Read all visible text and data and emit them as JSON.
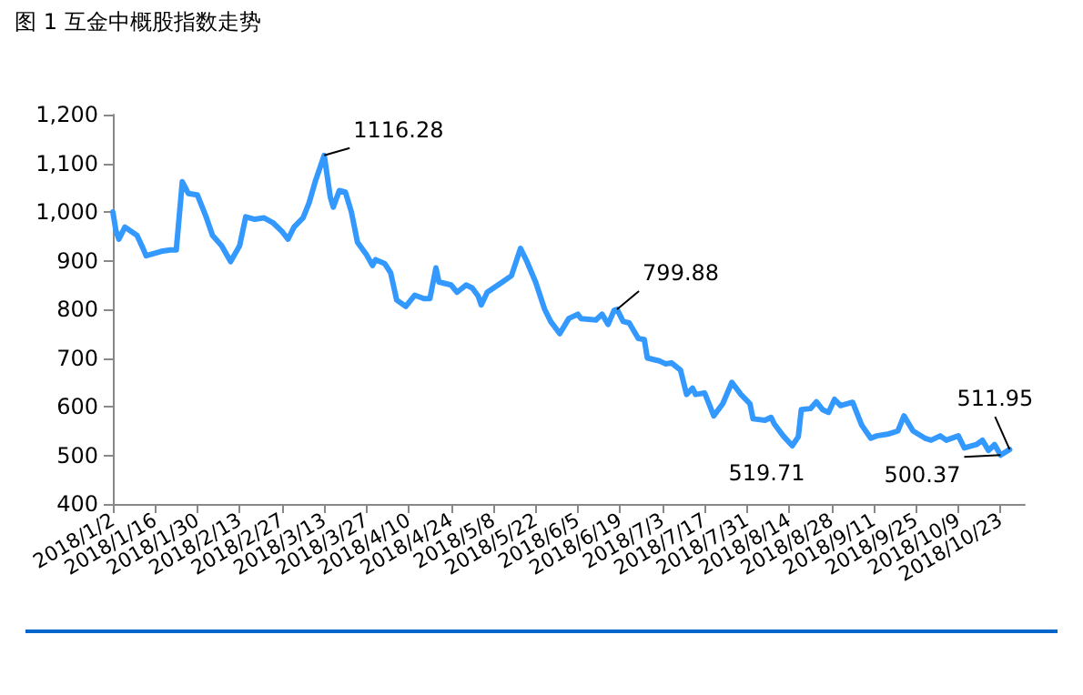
{
  "chart_data": {
    "type": "line",
    "title": "图 1  互金中概股指数走势",
    "x": [
      "2018-01-02",
      "2018-01-03",
      "2018-01-04",
      "2018-01-06",
      "2018-01-09",
      "2018-01-10",
      "2018-01-12",
      "2018-01-13",
      "2018-01-18",
      "2018-01-21",
      "2018-01-23",
      "2018-01-25",
      "2018-01-27",
      "2018-01-30",
      "2018-02-02",
      "2018-02-04",
      "2018-02-07",
      "2018-02-10",
      "2018-02-13",
      "2018-02-15",
      "2018-02-18",
      "2018-02-21",
      "2018-02-24",
      "2018-02-27",
      "2018-03-01",
      "2018-03-03",
      "2018-03-06",
      "2018-03-08",
      "2018-03-10",
      "2018-03-13",
      "2018-03-15",
      "2018-03-16",
      "2018-03-18",
      "2018-03-20",
      "2018-03-22",
      "2018-03-24",
      "2018-03-27",
      "2018-03-29",
      "2018-03-30",
      "2018-04-02",
      "2018-04-04",
      "2018-04-06",
      "2018-04-09",
      "2018-04-12",
      "2018-04-15",
      "2018-04-17",
      "2018-04-19",
      "2018-04-20",
      "2018-04-24",
      "2018-04-26",
      "2018-04-29",
      "2018-05-01",
      "2018-05-03",
      "2018-05-04",
      "2018-05-06",
      "2018-05-11",
      "2018-05-14",
      "2018-05-17",
      "2018-05-19",
      "2018-05-22",
      "2018-05-25",
      "2018-05-27",
      "2018-05-30",
      "2018-06-02",
      "2018-06-05",
      "2018-06-06",
      "2018-06-11",
      "2018-06-13",
      "2018-06-15",
      "2018-06-17",
      "2018-06-18",
      "2018-06-20",
      "2018-06-22",
      "2018-06-25",
      "2018-06-27",
      "2018-06-28",
      "2018-07-02",
      "2018-07-04",
      "2018-07-06",
      "2018-07-09",
      "2018-07-11",
      "2018-07-13",
      "2018-07-14",
      "2018-07-17",
      "2018-07-20",
      "2018-07-23",
      "2018-07-26",
      "2018-07-29",
      "2018-08-01",
      "2018-08-02",
      "2018-08-06",
      "2018-08-08",
      "2018-08-09",
      "2018-08-12",
      "2018-08-15",
      "2018-08-17",
      "2018-08-18",
      "2018-08-21",
      "2018-08-23",
      "2018-08-25",
      "2018-08-27",
      "2018-08-29",
      "2018-08-31",
      "2018-09-04",
      "2018-09-07",
      "2018-09-10",
      "2018-09-12",
      "2018-09-16",
      "2018-09-19",
      "2018-09-21",
      "2018-09-24",
      "2018-09-28",
      "2018-09-30",
      "2018-10-03",
      "2018-10-05",
      "2018-10-09",
      "2018-10-11",
      "2018-10-15",
      "2018-10-17",
      "2018-10-19",
      "2018-10-21",
      "2018-10-23",
      "2018-10-26"
    ],
    "series": [
      {
        "color": "#3399ff",
        "values": [
          1000,
          962,
          944,
          969,
          956,
          952,
          925,
          910,
          919,
          922,
          922,
          1062,
          1038,
          1035,
          988,
          952,
          931,
          898,
          931,
          990,
          985,
          988,
          978,
          960,
          944,
          969,
          988,
          1019,
          1062,
          1116.28,
          1031,
          1010,
          1044,
          1041,
          1000,
          938,
          912,
          890,
          902,
          894,
          875,
          819,
          806,
          829,
          822,
          822,
          885,
          856,
          850,
          835,
          850,
          844,
          827,
          809,
          835,
          856,
          869,
          925,
          900,
          856,
          800,
          775,
          750,
          781,
          790,
          781,
          778,
          790,
          769,
          798,
          799.88,
          775,
          772,
          740,
          738,
          700,
          694,
          688,
          690,
          675,
          625,
          638,
          625,
          628,
          581,
          606,
          650,
          625,
          606,
          575,
          572,
          578,
          565,
          540,
          519.71,
          538,
          594,
          596,
          610,
          594,
          588,
          615,
          602,
          609,
          562,
          535,
          540,
          544,
          550,
          581,
          550,
          535,
          531,
          540,
          531,
          540,
          515,
          522,
          531,
          510,
          522,
          500.37,
          511.95
        ]
      }
    ],
    "xlim": [
      "2018-01-02",
      "2018-10-31"
    ],
    "xticks": [
      {
        "value": "2018-01-02",
        "label": "2018/1/2"
      },
      {
        "value": "2018-01-16",
        "label": "2018/1/16"
      },
      {
        "value": "2018-01-30",
        "label": "2018/1/30"
      },
      {
        "value": "2018-02-13",
        "label": "2018/2/13"
      },
      {
        "value": "2018-02-27",
        "label": "2018/2/27"
      },
      {
        "value": "2018-03-13",
        "label": "2018/3/13"
      },
      {
        "value": "2018-03-27",
        "label": "2018/3/27"
      },
      {
        "value": "2018-04-10",
        "label": "2018/4/10"
      },
      {
        "value": "2018-04-24",
        "label": "2018/4/24"
      },
      {
        "value": "2018-05-08",
        "label": "2018/5/8"
      },
      {
        "value": "2018-05-22",
        "label": "2018/5/22"
      },
      {
        "value": "2018-06-05",
        "label": "2018/6/5"
      },
      {
        "value": "2018-06-19",
        "label": "2018/6/19"
      },
      {
        "value": "2018-07-03",
        "label": "2018/7/3"
      },
      {
        "value": "2018-07-17",
        "label": "2018/7/17"
      },
      {
        "value": "2018-07-31",
        "label": "2018/7/31"
      },
      {
        "value": "2018-08-14",
        "label": "2018/8/14"
      },
      {
        "value": "2018-08-28",
        "label": "2018/8/28"
      },
      {
        "value": "2018-09-11",
        "label": "2018/9/11"
      },
      {
        "value": "2018-09-25",
        "label": "2018/9/25"
      },
      {
        "value": "2018-10-09",
        "label": "2018/10/9"
      },
      {
        "value": "2018-10-23",
        "label": "2018/10/23"
      }
    ],
    "ylim": [
      400,
      1200
    ],
    "yticks": [
      {
        "value": 400,
        "label": "400"
      },
      {
        "value": 500,
        "label": "500"
      },
      {
        "value": 600,
        "label": "600"
      },
      {
        "value": 700,
        "label": "700"
      },
      {
        "value": 800,
        "label": "800"
      },
      {
        "value": 900,
        "label": "900"
      },
      {
        "value": 1000,
        "label": "1,000"
      },
      {
        "value": 1100,
        "label": "1,100"
      },
      {
        "value": 1200,
        "label": "1,200"
      }
    ],
    "annotations": [
      {
        "text": "1116.28",
        "x": "2018-03-13",
        "y": 1116.28
      },
      {
        "text": "799.88",
        "x": "2018-06-18",
        "y": 799.88
      },
      {
        "text": "519.71",
        "x": "2018-08-15",
        "y": 519.71
      },
      {
        "text": "511.95",
        "x": "2018-10-26",
        "y": 511.95
      },
      {
        "text": "500.37",
        "x": "2018-10-23",
        "y": 500.37
      }
    ],
    "grid": false,
    "marker": "none",
    "line_style": "solid"
  }
}
